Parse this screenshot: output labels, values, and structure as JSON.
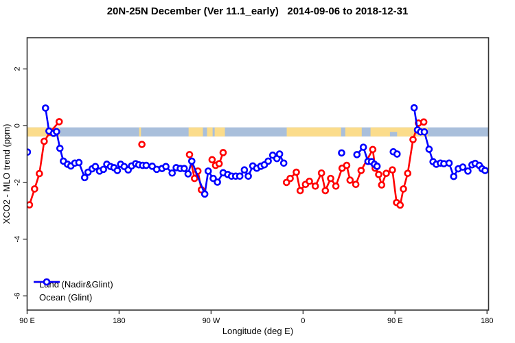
{
  "title": "20N-25N December (Ver 11.1_early)   2014-09-06 to 2018-12-31",
  "chart_data": {
    "type": "line",
    "title": "20N-25N December (Ver 11.1_early)   2014-09-06 to 2018-12-31",
    "xlabel": "Longitude (deg E)",
    "ylabel": "XCO2 - MLO trend (ppm)",
    "xlim": [
      90,
      541.5
    ],
    "ylim": [
      -6.5,
      3.1
    ],
    "grid": false,
    "legend_position": "bottom-left",
    "x_ticks": [
      {
        "value": 90,
        "label": "90 E"
      },
      {
        "value": 180,
        "label": "180"
      },
      {
        "value": 270,
        "label": "90 W"
      },
      {
        "value": 360,
        "label": "0"
      },
      {
        "value": 450,
        "label": "90 E"
      },
      {
        "value": 540,
        "label": "180"
      }
    ],
    "y_ticks": [
      {
        "value": 2,
        "label": "2"
      },
      {
        "value": 0,
        "label": "0"
      },
      {
        "value": -2,
        "label": "-2"
      },
      {
        "value": -4,
        "label": "-4"
      },
      {
        "value": -6,
        "label": "-6"
      }
    ],
    "land_ocean_band": {
      "description": "horizontal strip showing land(orange)/ocean(blue-gray) mask along longitude",
      "value_top": -0.06,
      "value_bottom": -0.38,
      "ocean_color": "#A9BFDB",
      "land_color": "#FBDC8B",
      "land_segments_lon": [
        [
          90,
          122
        ],
        [
          199.6,
          201.4
        ],
        [
          248,
          262
        ],
        [
          266,
          271.5
        ],
        [
          273.5,
          283.5
        ],
        [
          344,
          397.2
        ],
        [
          401.3,
          417.4
        ],
        [
          426,
          482
        ]
      ],
      "ocean_notches_bottom_half": [
        [
          445,
          452
        ]
      ]
    },
    "series": [
      {
        "name": "Land (Nadir&Glint)",
        "color": "#FF0000",
        "segments": [
          [
            [
              92.3,
              -2.79
            ],
            [
              97.3,
              -2.23
            ],
            [
              102,
              -1.69
            ],
            [
              106.7,
              -0.55
            ],
            [
              112.5,
              -0.23
            ],
            [
              121.4,
              0.14
            ]
          ],
          [
            [
              202.3,
              -0.66
            ]
          ],
          [
            [
              248.9,
              -1.02
            ],
            [
              253.8,
              -1.86
            ],
            [
              257.1,
              -1.6
            ],
            [
              260.5,
              -2.26
            ]
          ],
          [
            [
              271,
              -1.2
            ],
            [
              274.4,
              -1.4
            ],
            [
              277.9,
              -1.34
            ],
            [
              281.8,
              -0.95
            ]
          ],
          [
            [
              343.8,
              -2.0
            ],
            [
              347.4,
              -1.86
            ],
            [
              353.4,
              -1.64
            ],
            [
              357.2,
              -2.29
            ],
            [
              362.4,
              -2.07
            ],
            [
              366.2,
              -1.96
            ],
            [
              372,
              -2.13
            ],
            [
              378,
              -1.67
            ],
            [
              381.8,
              -2.29
            ],
            [
              387,
              -1.86
            ],
            [
              392.1,
              -2.13
            ],
            [
              398.2,
              -1.5
            ],
            [
              402.7,
              -1.4
            ],
            [
              406,
              -1.92
            ],
            [
              411.6,
              -2.07
            ],
            [
              416.8,
              -1.58
            ],
            [
              428.2,
              -0.84
            ],
            [
              430.6,
              -1.5
            ],
            [
              434,
              -1.72
            ],
            [
              436.9,
              -2.09
            ],
            [
              441.4,
              -1.68
            ],
            [
              447.4,
              -1.56
            ],
            [
              451.5,
              -2.71
            ],
            [
              455,
              -2.8
            ],
            [
              458.2,
              -2.23
            ],
            [
              462.4,
              -1.68
            ],
            [
              467.6,
              -0.49
            ],
            [
              472.9,
              0.09
            ],
            [
              478.1,
              0.13
            ]
          ]
        ]
      },
      {
        "name": "Ocean (Glint)",
        "color": "#0000FF",
        "segments": [
          [
            [
              90.3,
              -0.93
            ]
          ],
          [
            [
              108,
              0.62
            ],
            [
              111.4,
              -0.19
            ],
            [
              115.9,
              -0.27
            ],
            [
              118.8,
              -0.21
            ],
            [
              122.1,
              -0.8
            ],
            [
              125.5,
              -1.25
            ],
            [
              129.5,
              -1.36
            ],
            [
              132.8,
              -1.42
            ],
            [
              136.7,
              -1.32
            ],
            [
              140.7,
              -1.3
            ],
            [
              146.3,
              -1.83
            ],
            [
              149.6,
              -1.64
            ],
            [
              153.7,
              -1.52
            ],
            [
              156.8,
              -1.44
            ],
            [
              160.9,
              -1.6
            ],
            [
              164.7,
              -1.54
            ],
            [
              168,
              -1.36
            ],
            [
              171.6,
              -1.44
            ],
            [
              175,
              -1.48
            ],
            [
              178.3,
              -1.58
            ],
            [
              181.5,
              -1.36
            ],
            [
              185,
              -1.44
            ],
            [
              188.9,
              -1.56
            ],
            [
              192.2,
              -1.42
            ],
            [
              196.2,
              -1.34
            ],
            [
              199.3,
              -1.38
            ],
            [
              203,
              -1.4
            ],
            [
              206.5,
              -1.4
            ],
            [
              212.4,
              -1.43
            ],
            [
              216.8,
              -1.54
            ],
            [
              222,
              -1.51
            ],
            [
              225.8,
              -1.44
            ],
            [
              231.9,
              -1.67
            ],
            [
              235.9,
              -1.48
            ],
            [
              239.9,
              -1.51
            ],
            [
              243.7,
              -1.51
            ],
            [
              247.5,
              -1.7
            ],
            [
              251.1,
              -1.25
            ],
            [
              263.8,
              -2.41
            ],
            [
              267.2,
              -1.6
            ],
            [
              272.1,
              -1.86
            ],
            [
              276.2,
              -1.99
            ],
            [
              281.8,
              -1.66
            ],
            [
              286.3,
              -1.72
            ],
            [
              290,
              -1.78
            ],
            [
              294.1,
              -1.78
            ],
            [
              298.1,
              -1.78
            ],
            [
              302.6,
              -1.56
            ],
            [
              306.4,
              -1.78
            ],
            [
              310.8,
              -1.42
            ],
            [
              314.7,
              -1.5
            ],
            [
              318.7,
              -1.43
            ],
            [
              322.1,
              -1.38
            ],
            [
              325.9,
              -1.25
            ],
            [
              330.3,
              -1.04
            ],
            [
              334.4,
              -1.16
            ],
            [
              337,
              -1.0
            ],
            [
              341.1,
              -1.32
            ]
          ],
          [
            [
              397.7,
              -0.96
            ]
          ],
          [
            [
              412.7,
              -1.02
            ],
            [
              419,
              -0.76
            ],
            [
              423.5,
              -1.26
            ],
            [
              427,
              -1.27
            ],
            [
              429.8,
              -1.36
            ],
            [
              432.4,
              -1.43
            ]
          ],
          [
            [
              448.3,
              -0.92
            ],
            [
              452,
              -1.0
            ]
          ],
          [
            [
              468.7,
              0.63
            ],
            [
              472,
              -0.15
            ],
            [
              475,
              -0.22
            ],
            [
              478.7,
              -0.22
            ],
            [
              483.3,
              -0.83
            ],
            [
              487.2,
              -1.27
            ],
            [
              490.4,
              -1.36
            ],
            [
              494.4,
              -1.32
            ],
            [
              497.8,
              -1.34
            ],
            [
              502.9,
              -1.32
            ],
            [
              507.4,
              -1.79
            ],
            [
              511.9,
              -1.52
            ],
            [
              516.3,
              -1.46
            ],
            [
              521.3,
              -1.6
            ],
            [
              525.3,
              -1.38
            ],
            [
              528.4,
              -1.33
            ],
            [
              532.4,
              -1.4
            ],
            [
              535.1,
              -1.52
            ],
            [
              538.1,
              -1.58
            ]
          ]
        ]
      }
    ]
  },
  "legend": {
    "land_label": "Land (Nadir&Glint)",
    "ocean_label": "Ocean (Glint)"
  }
}
